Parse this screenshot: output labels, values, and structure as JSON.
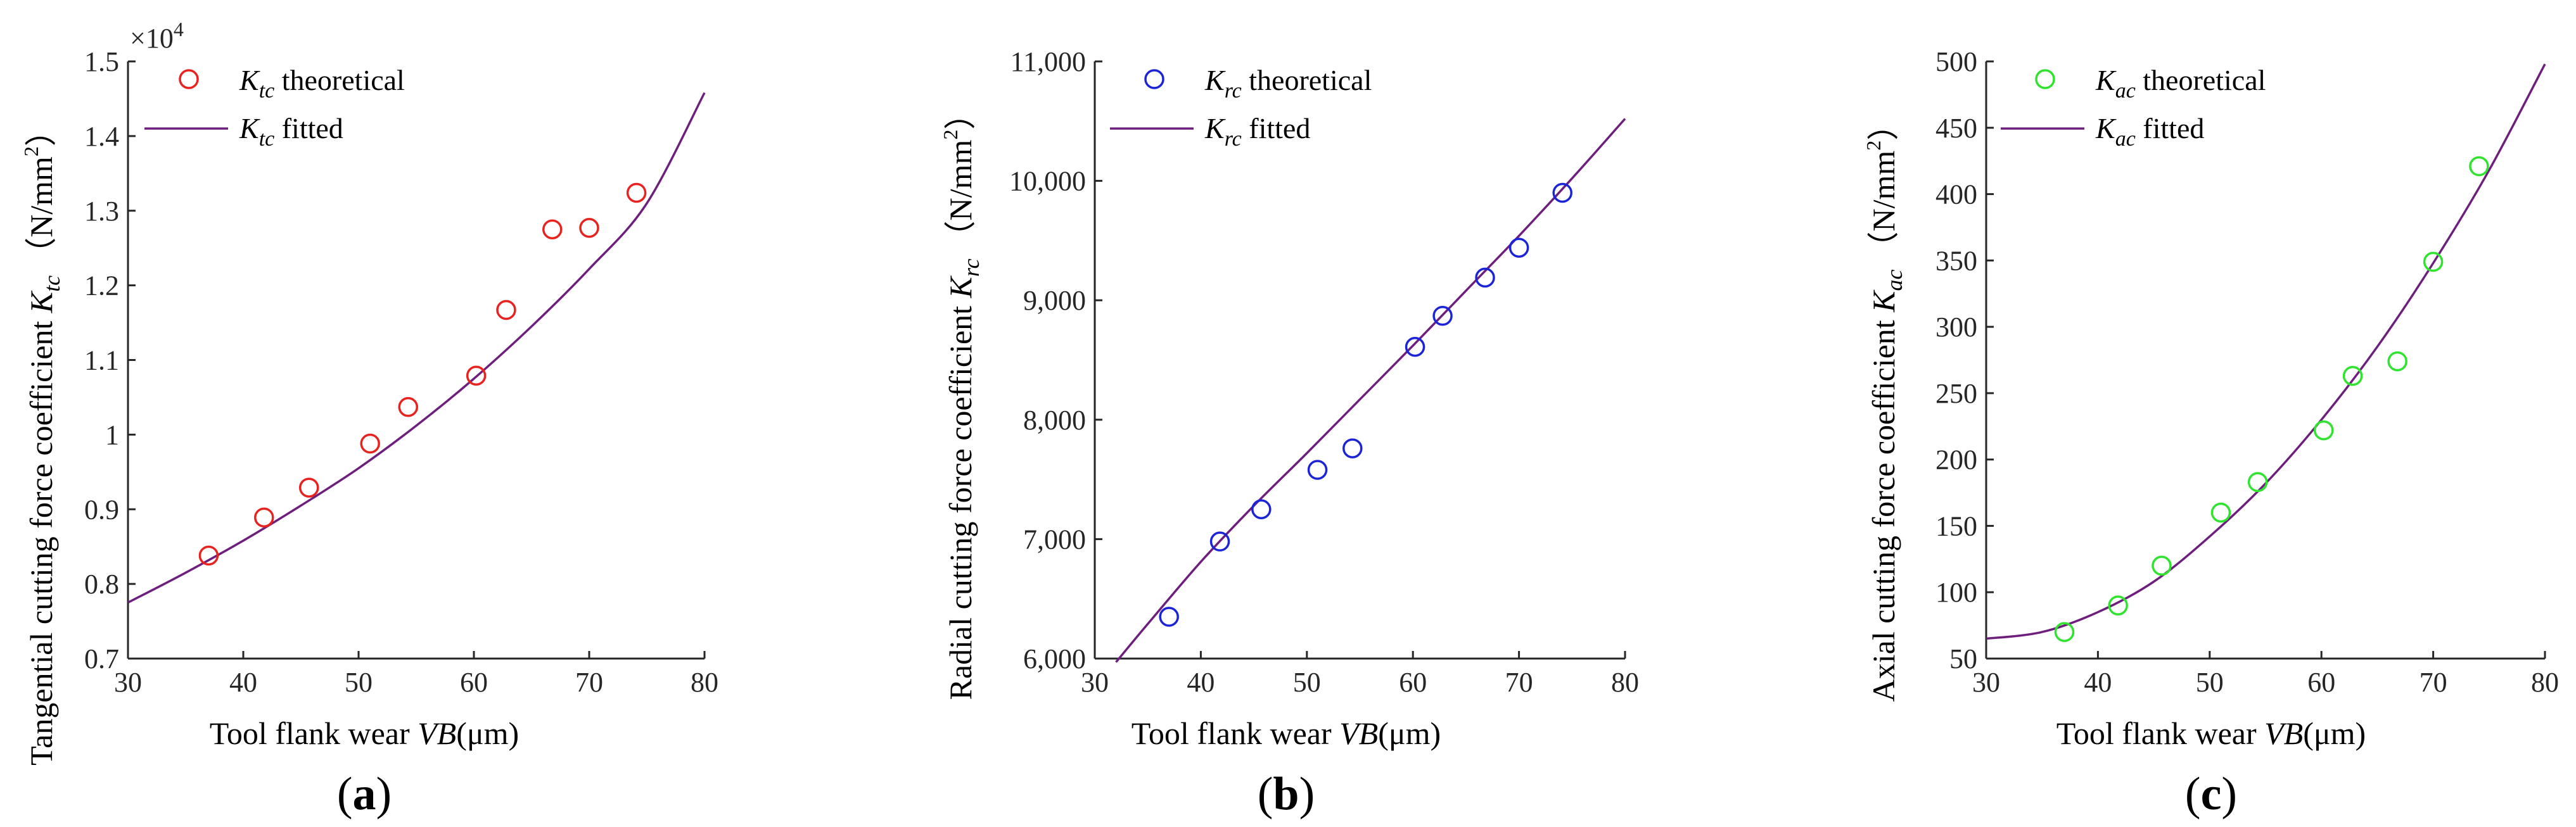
{
  "fit_color": "#6e1e7c",
  "chart_data": [
    {
      "type": "scatter",
      "panel_label": "a",
      "xlabel_text": "Tool flank wear ",
      "xlabel_var": "VB",
      "xlabel_unit": "(μm)",
      "ylabel_text": "Tangential cutting force coefficient ",
      "ylabel_var": "K",
      "ylabel_sub": "tc",
      "ylabel_unit": "（N/mm",
      "ylabel_unit_sup": "2",
      "ylabel_unit_close": "）",
      "xlim": [
        30,
        80
      ],
      "ylim": [
        0.7,
        1.5
      ],
      "xticks": [
        30,
        40,
        50,
        60,
        70,
        80
      ],
      "xtick_labels": [
        "30",
        "40",
        "50",
        "60",
        "70",
        "80"
      ],
      "yticks": [
        0.7,
        0.8,
        0.9,
        1.0,
        1.1,
        1.2,
        1.3,
        1.4,
        1.5
      ],
      "ytick_labels": [
        "0.7",
        "0.8",
        "0.9",
        "1",
        "1.1",
        "1.2",
        "1.3",
        "1.4",
        "1.5"
      ],
      "multiplier_base": "×10",
      "multiplier_exp": "4",
      "marker_color": "#e8231f",
      "series": [
        {
          "name": "theoretical",
          "legend_var": "K",
          "legend_sub": "tc",
          "legend_text": " theoretical",
          "x": [
            37,
            41.8,
            45.7,
            51,
            54.3,
            60.2,
            62.8,
            66.8,
            70,
            74.1
          ],
          "y": [
            0.838,
            0.889,
            0.929,
            0.988,
            1.037,
            1.079,
            1.167,
            1.275,
            1.277,
            1.324
          ]
        },
        {
          "name": "fitted",
          "legend_var": "K",
          "legend_sub": "tc",
          "legend_text": " fitted",
          "fit_x": [
            30,
            35,
            40,
            45,
            50,
            55,
            60,
            65,
            70,
            75,
            80
          ],
          "fit_y": [
            0.775,
            0.815,
            0.858,
            0.905,
            0.955,
            1.012,
            1.075,
            1.145,
            1.222,
            1.31,
            1.458
          ]
        }
      ]
    },
    {
      "type": "scatter",
      "panel_label": "b",
      "xlabel_text": "Tool flank wear ",
      "xlabel_var": "VB",
      "xlabel_unit": "(μm)",
      "ylabel_text": "Radial cutting force coefficient ",
      "ylabel_var": "K",
      "ylabel_sub": "rc",
      "ylabel_unit": "（N/mm",
      "ylabel_unit_sup": "2",
      "ylabel_unit_close": "）",
      "xlim": [
        30,
        80
      ],
      "ylim": [
        6000,
        11000
      ],
      "xticks": [
        30,
        40,
        50,
        60,
        70,
        80
      ],
      "xtick_labels": [
        "30",
        "40",
        "50",
        "60",
        "70",
        "80"
      ],
      "yticks": [
        6000,
        7000,
        8000,
        9000,
        10000,
        11000
      ],
      "ytick_labels": [
        "6,000",
        "7,000",
        "8,000",
        "9,000",
        "10,000",
        "11,000"
      ],
      "multiplier_base": "",
      "multiplier_exp": "",
      "marker_color": "#1c24d8",
      "series": [
        {
          "name": "theoretical",
          "legend_var": "K",
          "legend_sub": "rc",
          "legend_text": " theoretical",
          "x": [
            37,
            41.8,
            45.7,
            51,
            54.3,
            60.2,
            62.8,
            66.8,
            70,
            74.1
          ],
          "y": [
            6350,
            6980,
            7250,
            7580,
            7760,
            8610,
            8870,
            9190,
            9440,
            9900
          ]
        },
        {
          "name": "fitted",
          "legend_var": "K",
          "legend_sub": "rc",
          "legend_text": " fitted",
          "fit_x": [
            32,
            35,
            40,
            45,
            50,
            55,
            60,
            65,
            70,
            75,
            80
          ],
          "fit_y": [
            5970,
            6290,
            6810,
            7280,
            7720,
            8170,
            8620,
            9080,
            9540,
            10020,
            10520
          ]
        }
      ]
    },
    {
      "type": "scatter",
      "panel_label": "c",
      "xlabel_text": "Tool flank wear ",
      "xlabel_var": "VB",
      "xlabel_unit": "(μm)",
      "ylabel_text": "Axial cutting force coefficient ",
      "ylabel_var": "K",
      "ylabel_sub": "ac",
      "ylabel_unit": "（N/mm",
      "ylabel_unit_sup": "2",
      "ylabel_unit_close": "）",
      "xlim": [
        30,
        80
      ],
      "ylim": [
        50,
        500
      ],
      "xticks": [
        30,
        40,
        50,
        60,
        70,
        80
      ],
      "xtick_labels": [
        "30",
        "40",
        "50",
        "60",
        "70",
        "80"
      ],
      "yticks": [
        50,
        100,
        150,
        200,
        250,
        300,
        350,
        400,
        450,
        500
      ],
      "ytick_labels": [
        "50",
        "100",
        "150",
        "200",
        "250",
        "300",
        "350",
        "400",
        "450",
        "500"
      ],
      "multiplier_base": "",
      "multiplier_exp": "",
      "marker_color": "#2fe32f",
      "series": [
        {
          "name": "theoretical",
          "legend_var": "K",
          "legend_sub": "ac",
          "legend_text": " theoretical",
          "x": [
            37,
            41.8,
            45.7,
            51,
            54.3,
            60.2,
            62.8,
            66.8,
            70,
            74.1
          ],
          "y": [
            70,
            90,
            120,
            160,
            183,
            222,
            263,
            274,
            349,
            421
          ]
        },
        {
          "name": "fitted",
          "legend_var": "K",
          "legend_sub": "ac",
          "legend_text": " fitted",
          "fit_x": [
            30,
            35,
            40,
            45,
            50,
            55,
            60,
            65,
            70,
            75,
            80
          ],
          "fit_y": [
            65,
            70,
            85,
            108,
            142,
            182,
            230,
            285,
            348,
            418,
            498
          ]
        }
      ]
    }
  ]
}
